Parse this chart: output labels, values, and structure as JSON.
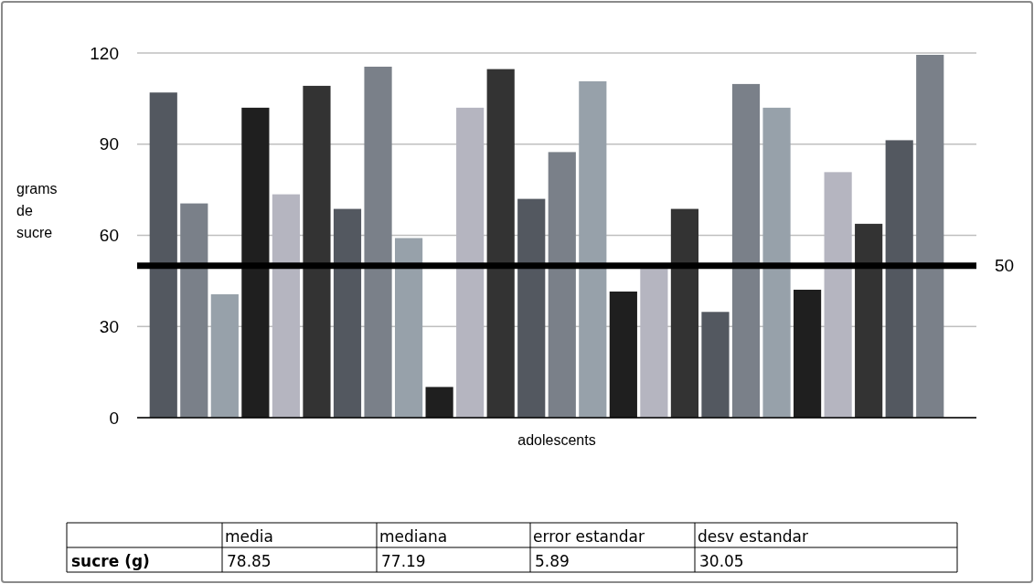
{
  "chart_data": {
    "type": "bar",
    "ylabel": "grams de sucre",
    "xlabel": "adolescents",
    "categories": [
      null,
      null,
      null,
      null,
      null,
      null,
      null,
      null,
      null,
      null,
      null,
      null,
      null,
      null,
      null,
      null,
      null,
      null,
      null,
      null,
      null,
      null,
      null,
      null,
      null,
      null
    ],
    "values": [
      107,
      70.5,
      40.6,
      102,
      73.5,
      109.2,
      68.7,
      115.5,
      59.1,
      10.1,
      102,
      114.7,
      72,
      87.4,
      110.7,
      41.5,
      49,
      68.7,
      34.8,
      109.8,
      102,
      42.1,
      80.8,
      63.8,
      91.3,
      119.4
    ],
    "colors": [
      "#535860",
      "#7a8089",
      "#97a1aa",
      "#1f1f1f",
      "#b5b5c0",
      "#333333",
      "#535860",
      "#7a8089",
      "#97a1aa",
      "#1f1f1f",
      "#b5b5c0",
      "#333333",
      "#535860",
      "#7a8089",
      "#97a1aa",
      "#1f1f1f",
      "#b5b5c0",
      "#333333",
      "#535860",
      "#7a8089",
      "#97a1aa",
      "#1f1f1f",
      "#b5b5c0",
      "#333333",
      "#535860",
      "#7a8089"
    ],
    "ylim": [
      0,
      120
    ],
    "yticks": [
      0,
      30,
      60,
      90,
      120
    ],
    "grid": "y",
    "ref_lines": [
      {
        "axis": "y",
        "value": 50,
        "label": "50",
        "color": "#000000"
      }
    ],
    "annotations": [
      "media",
      "mediana",
      "error estandar",
      "desv estandar",
      "sucre (g)",
      "78.85",
      "77.19",
      "5.89",
      "30.05"
    ]
  }
}
